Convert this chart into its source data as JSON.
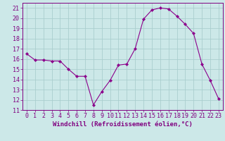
{
  "x": [
    0,
    1,
    2,
    3,
    4,
    5,
    6,
    7,
    8,
    9,
    10,
    11,
    12,
    13,
    14,
    15,
    16,
    17,
    18,
    19,
    20,
    21,
    22,
    23
  ],
  "y": [
    16.5,
    15.9,
    15.9,
    15.8,
    15.8,
    15.0,
    14.3,
    14.3,
    11.5,
    12.8,
    13.9,
    15.4,
    15.5,
    17.0,
    19.9,
    20.8,
    21.0,
    20.9,
    20.2,
    19.4,
    18.5,
    15.5,
    13.9,
    12.1
  ],
  "line_color": "#8b008b",
  "marker": "D",
  "marker_size": 2.2,
  "bg_color": "#cce8e8",
  "grid_color": "#aacece",
  "axis_color": "#800080",
  "xlabel": "Windchill (Refroidissement éolien,°C)",
  "xlabel_fontsize": 6.5,
  "tick_fontsize": 6.0,
  "ylim": [
    11,
    21.5
  ],
  "xlim": [
    -0.5,
    23.5
  ],
  "yticks": [
    11,
    12,
    13,
    14,
    15,
    16,
    17,
    18,
    19,
    20,
    21
  ],
  "xticks": [
    0,
    1,
    2,
    3,
    4,
    5,
    6,
    7,
    8,
    9,
    10,
    11,
    12,
    13,
    14,
    15,
    16,
    17,
    18,
    19,
    20,
    21,
    22,
    23
  ]
}
